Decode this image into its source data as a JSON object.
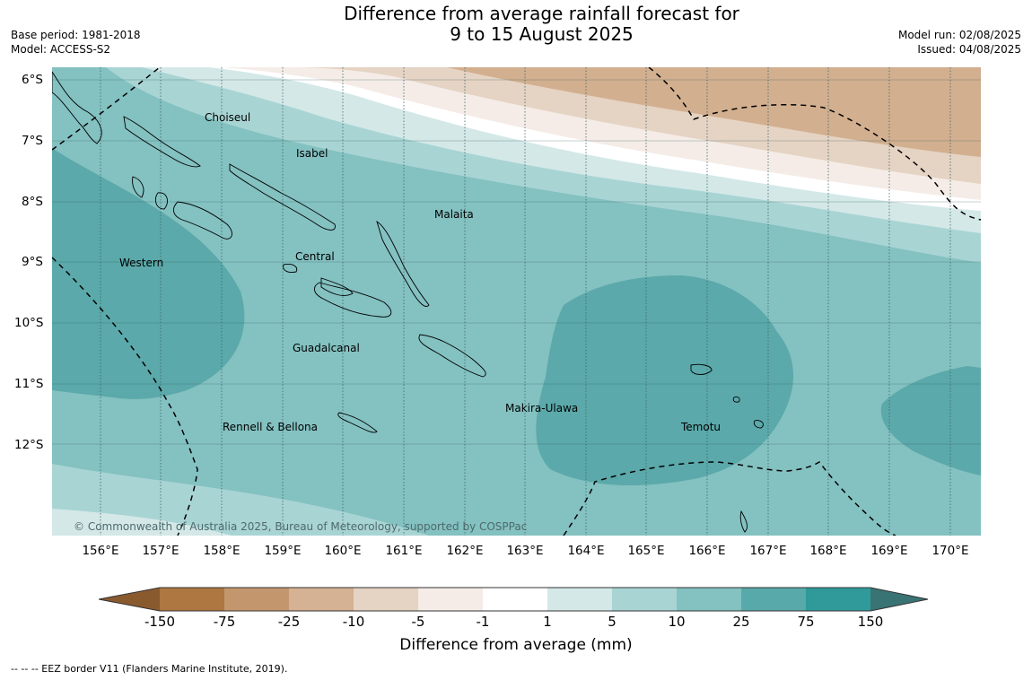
{
  "title_line1": "Difference from average rainfall forecast for",
  "title_line2": "9 to 15 August 2025",
  "base_period": "Base period: 1981-2018",
  "model": "Model: ACCESS-S2",
  "model_run": "Model run: 02/08/2025",
  "issued": "Issued: 04/08/2025",
  "latitudes": [
    "6°S",
    "7°S",
    "8°S",
    "9°S",
    "10°S",
    "11°S",
    "12°S"
  ],
  "longitudes": [
    "156°E",
    "157°E",
    "158°E",
    "159°E",
    "160°E",
    "161°E",
    "162°E",
    "163°E",
    "164°E",
    "165°E",
    "166°E",
    "167°E",
    "168°E",
    "169°E",
    "170°E"
  ],
  "regions": {
    "choiseul": "Choiseul",
    "isabel": "Isabel",
    "malaita": "Malaita",
    "western": "Western",
    "central": "Central",
    "guadalcanal": "Guadalcanal",
    "makira": "Makira-Ulawa",
    "rennell": "Rennell & Bellona",
    "temotu": "Temotu"
  },
  "copyright": "© Commonwealth of Australia 2025, Bureau of Meteorology, supported by COSPPac",
  "colorbar": {
    "title": "Difference from average (mm)",
    "ticks": [
      "-150",
      "-75",
      "-25",
      "-10",
      "-5",
      "-1",
      "1",
      "5",
      "10",
      "25",
      "75",
      "150"
    ],
    "colors": [
      "#8a5a2f",
      "#ae7641",
      "#c4966d",
      "#d5b293",
      "#e5d3c3",
      "#f5ece7",
      "#ffffff",
      "#d4e8e8",
      "#a9d4d4",
      "#84c1c1",
      "#58a9aa",
      "#2f9a99",
      "#3a7373"
    ]
  },
  "footnote": "-- -- -- EEZ border V11 (Flanders Marine Institute, 2019)."
}
